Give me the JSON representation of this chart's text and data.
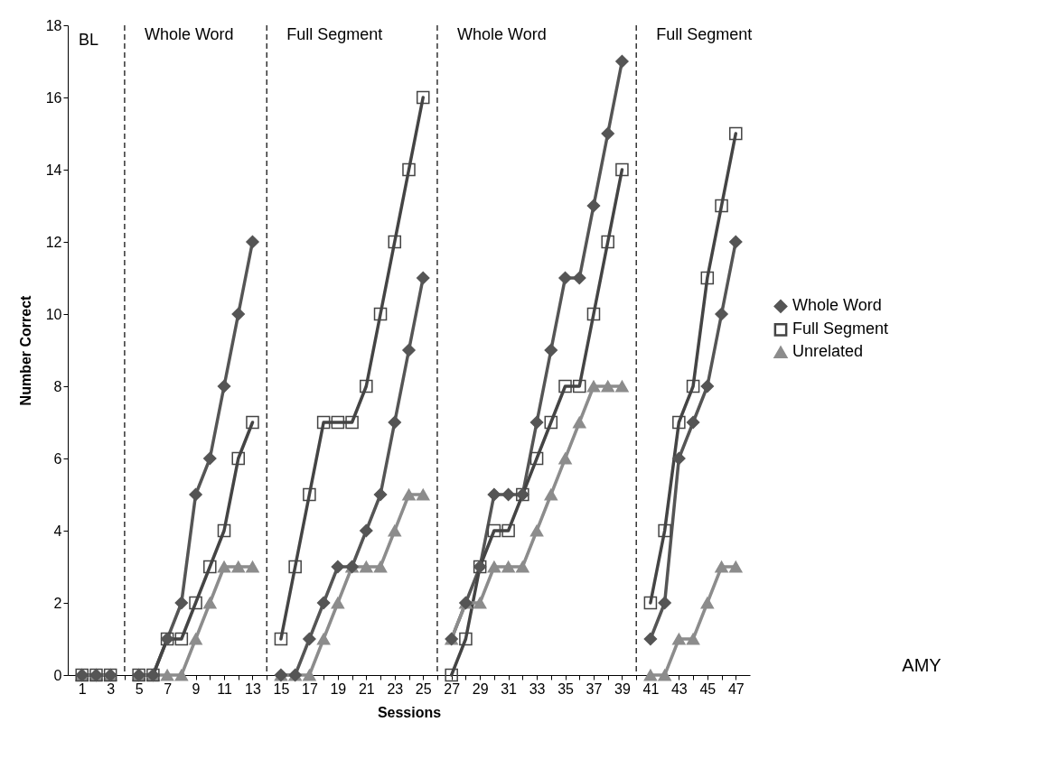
{
  "chart_data": {
    "type": "line",
    "xlabel": "Sessions",
    "ylabel": "Number Correct",
    "x": [
      1,
      2,
      3,
      4,
      5,
      6,
      7,
      8,
      9,
      10,
      11,
      12,
      13,
      14,
      15,
      16,
      17,
      18,
      19,
      20,
      21,
      22,
      23,
      24,
      25,
      26,
      27,
      28,
      29,
      30,
      31,
      32,
      33,
      34,
      35,
      36,
      37,
      38,
      39,
      40,
      41,
      42,
      43,
      44,
      45,
      46,
      47
    ],
    "series": [
      {
        "name": "Whole Word",
        "color": "#555555",
        "marker": "diamond",
        "values": [
          0,
          0,
          0,
          null,
          0,
          0,
          1,
          2,
          5,
          6,
          8,
          10,
          12,
          null,
          0,
          0,
          1,
          2,
          3,
          3,
          4,
          5,
          7,
          9,
          11,
          null,
          1,
          2,
          3,
          5,
          5,
          5,
          7,
          9,
          11,
          11,
          13,
          15,
          17,
          null,
          1,
          2,
          6,
          7,
          8,
          10,
          12
        ]
      },
      {
        "name": "Full Segment",
        "color": "#444444",
        "marker": "square",
        "values": [
          0,
          0,
          0,
          null,
          0,
          0,
          1,
          1,
          2,
          3,
          4,
          6,
          7,
          null,
          1,
          3,
          5,
          7,
          7,
          7,
          8,
          10,
          12,
          14,
          16,
          null,
          0,
          1,
          3,
          4,
          4,
          5,
          6,
          7,
          8,
          8,
          10,
          12,
          14,
          null,
          2,
          4,
          7,
          8,
          11,
          13,
          15
        ]
      },
      {
        "name": "Unrelated",
        "color": "#8c8c8c",
        "marker": "triangle",
        "values": [
          0,
          0,
          0,
          null,
          0,
          0,
          0,
          0,
          1,
          2,
          3,
          3,
          3,
          null,
          0,
          0,
          0,
          1,
          2,
          3,
          3,
          3,
          4,
          5,
          5,
          null,
          1,
          2,
          2,
          3,
          3,
          3,
          4,
          5,
          6,
          7,
          8,
          8,
          8,
          null,
          0,
          0,
          1,
          1,
          2,
          3,
          3
        ]
      }
    ],
    "xlim": [
      0,
      48
    ],
    "xticks": [
      1,
      {
        "value": 2,
        "label": null
      },
      3,
      {
        "value": 4,
        "label": null
      },
      5,
      {
        "value": 6,
        "label": null
      },
      7,
      {
        "value": 8,
        "label": null
      },
      9,
      {
        "value": 10,
        "label": null
      },
      11,
      {
        "value": 12,
        "label": null
      },
      13,
      {
        "value": 14,
        "label": null
      },
      15,
      {
        "value": 16,
        "label": null
      },
      17,
      {
        "value": 18,
        "label": null
      },
      19,
      {
        "value": 20,
        "label": null
      },
      21,
      {
        "value": 22,
        "label": null
      },
      23,
      {
        "value": 24,
        "label": null
      },
      25,
      {
        "value": 26,
        "label": null
      },
      27,
      {
        "value": 28,
        "label": null
      },
      29,
      {
        "value": 30,
        "label": null
      },
      31,
      {
        "value": 32,
        "label": null
      },
      33,
      {
        "value": 34,
        "label": null
      },
      35,
      {
        "value": 36,
        "label": null
      },
      37,
      {
        "value": 38,
        "label": null
      },
      39,
      {
        "value": 40,
        "label": null
      },
      41,
      {
        "value": 42,
        "label": null
      },
      43,
      {
        "value": 44,
        "label": null
      },
      45,
      {
        "value": 46,
        "label": null
      },
      47
    ],
    "ylim": [
      0,
      18
    ],
    "yticks": [
      0,
      2,
      4,
      6,
      8,
      10,
      12,
      14,
      16,
      18
    ],
    "ref_lines": [
      {
        "axis": "x",
        "value": 4,
        "label": "Whole Word",
        "color": "#000000",
        "line_style": "dashed"
      },
      {
        "axis": "x",
        "value": 14,
        "label": "Full Segment",
        "color": "#000000",
        "line_style": "dashed"
      },
      {
        "axis": "x",
        "value": 26,
        "label": "Whole Word",
        "color": "#000000",
        "line_style": "dashed"
      },
      {
        "axis": "x",
        "value": 40,
        "label": "Full Segment",
        "color": "#000000",
        "line_style": "dashed"
      }
    ],
    "annotations": [
      "BL",
      "AMY"
    ],
    "grid": false,
    "legend": "right",
    "line_style": "solid"
  }
}
